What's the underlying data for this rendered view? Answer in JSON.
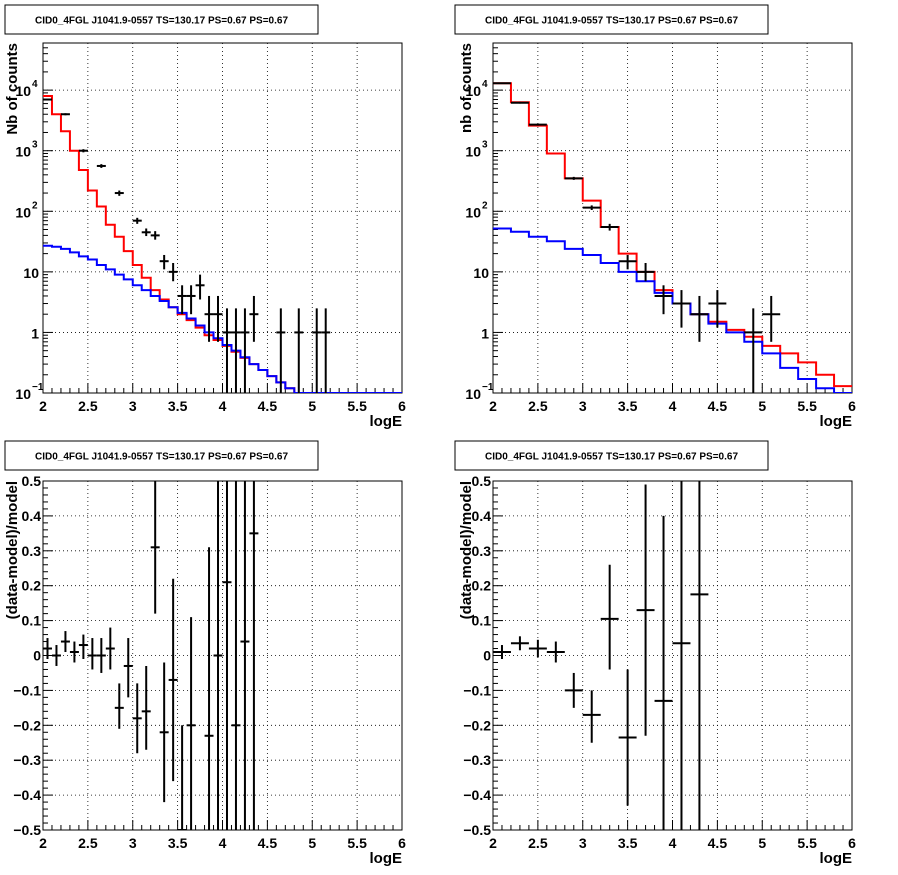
{
  "chart_data": [
    {
      "type": "step-histogram-with-data",
      "title": "CID0_4FGL J1041.9-0557 TS=130.17 PS=0.67 PS=0.67",
      "xlabel": "logE",
      "ylabel": "Nb of counts",
      "xlim": [
        2,
        6
      ],
      "ylim": [
        0.1,
        60000
      ],
      "yscale": "log",
      "grid": true,
      "xticks": [
        "2",
        "2.5",
        "3",
        "3.5",
        "4",
        "4.5",
        "5",
        "5.5",
        "6"
      ],
      "yticks": [
        {
          "v": 0.1,
          "label": "10",
          "exp": "−1"
        },
        {
          "v": 1,
          "label": "1",
          "exp": ""
        },
        {
          "v": 10,
          "label": "10",
          "exp": ""
        },
        {
          "v": 100,
          "label": "10",
          "exp": "2"
        },
        {
          "v": 1000,
          "label": "10",
          "exp": "3"
        },
        {
          "v": 10000,
          "label": "10",
          "exp": "4"
        }
      ],
      "bin_width": 0.1,
      "bin_start": 2.0,
      "series": [
        {
          "color": "#ff0000",
          "kind": "total-model",
          "values": [
            8000,
            4000,
            2100,
            1000,
            480,
            220,
            120,
            60,
            38,
            22,
            13,
            8,
            5,
            3.5,
            2.6,
            2.0,
            1.6,
            1.2,
            0.9,
            0.75,
            0.6,
            0.48,
            0.38,
            0.3,
            0.24,
            0.19,
            0.15,
            0.12,
            0.1,
            0.1,
            0.1,
            0.1,
            0.1,
            0.1,
            0.1,
            0.1,
            0.1,
            0.1,
            0.1,
            0.1
          ]
        },
        {
          "color": "#0000ff",
          "kind": "component-model",
          "values": [
            27,
            26,
            24,
            21,
            18,
            16,
            13,
            11,
            9,
            7.5,
            6,
            5,
            4,
            3.3,
            2.6,
            2.1,
            1.7,
            1.3,
            1.0,
            0.8,
            0.62,
            0.5,
            0.39,
            0.3,
            0.24,
            0.19,
            0.15,
            0.12,
            0.1,
            0.1,
            0.1,
            0.1,
            0.1,
            0.1,
            0.1,
            0.1,
            0.1,
            0.1,
            0.1,
            0.1
          ]
        }
      ],
      "data_points": [
        {
          "x": 2.05,
          "y": 7000,
          "lo": 6800,
          "hi": 7200
        },
        {
          "x": 2.25,
          "y": 4000,
          "lo": 3850,
          "hi": 4150
        },
        {
          "x": 2.45,
          "y": 1000,
          "lo": 940,
          "hi": 1060
        },
        {
          "x": 2.65,
          "y": 560,
          "lo": 520,
          "hi": 600
        },
        {
          "x": 2.85,
          "y": 200,
          "lo": 180,
          "hi": 220
        },
        {
          "x": 3.05,
          "y": 70,
          "lo": 62,
          "hi": 78
        },
        {
          "x": 3.15,
          "y": 45,
          "lo": 39,
          "hi": 52
        },
        {
          "x": 3.25,
          "y": 40,
          "lo": 34,
          "hi": 47
        },
        {
          "x": 3.35,
          "y": 15,
          "lo": 11,
          "hi": 19
        },
        {
          "x": 3.45,
          "y": 10,
          "lo": 7,
          "hi": 14
        },
        {
          "x": 3.55,
          "y": 4,
          "lo": 2,
          "hi": 6
        },
        {
          "x": 3.65,
          "y": 4,
          "lo": 2,
          "hi": 6
        },
        {
          "x": 3.75,
          "y": 6,
          "lo": 3.5,
          "hi": 9
        },
        {
          "x": 3.85,
          "y": 2,
          "lo": 0.7,
          "hi": 4
        },
        {
          "x": 3.95,
          "y": 2,
          "lo": 0.7,
          "hi": 4
        },
        {
          "x": 4.05,
          "y": 1,
          "lo": 0.1,
          "hi": 2.5
        },
        {
          "x": 4.15,
          "y": 1,
          "lo": 0.1,
          "hi": 2.5
        },
        {
          "x": 4.25,
          "y": 1,
          "lo": 0.1,
          "hi": 2.5
        },
        {
          "x": 4.35,
          "y": 2,
          "lo": 0.7,
          "hi": 4
        },
        {
          "x": 4.65,
          "y": 1,
          "lo": 0.1,
          "hi": 2.5
        },
        {
          "x": 4.85,
          "y": 1,
          "lo": 0.1,
          "hi": 2.5
        },
        {
          "x": 5.05,
          "y": 1,
          "lo": 0.1,
          "hi": 2.5
        },
        {
          "x": 5.15,
          "y": 1,
          "lo": 0.1,
          "hi": 2.5
        }
      ]
    },
    {
      "type": "step-histogram-with-data",
      "title": "CID0_4FGL J1041.9-0557 TS=130.17 PS=0.67 PS=0.67",
      "xlabel": "logE",
      "ylabel": "nb of counts",
      "xlim": [
        2,
        6
      ],
      "ylim": [
        0.1,
        60000
      ],
      "yscale": "log",
      "grid": true,
      "xticks": [
        "2",
        "2.5",
        "3",
        "3.5",
        "4",
        "4.5",
        "5",
        "5.5",
        "6"
      ],
      "yticks": [
        {
          "v": 0.1,
          "label": "10",
          "exp": "−1"
        },
        {
          "v": 1,
          "label": "1",
          "exp": ""
        },
        {
          "v": 10,
          "label": "10",
          "exp": ""
        },
        {
          "v": 100,
          "label": "10",
          "exp": "2"
        },
        {
          "v": 1000,
          "label": "10",
          "exp": "3"
        },
        {
          "v": 10000,
          "label": "10",
          "exp": "4"
        }
      ],
      "bin_width": 0.2,
      "bin_start": 2.0,
      "series": [
        {
          "color": "#ff0000",
          "kind": "total-model",
          "values": [
            13000,
            6300,
            2600,
            900,
            350,
            150,
            55,
            20,
            10,
            5,
            3,
            2,
            1.5,
            1.1,
            0.85,
            0.6,
            0.45,
            0.32,
            0.2,
            0.13
          ]
        },
        {
          "color": "#0000ff",
          "kind": "component-model",
          "values": [
            52,
            46,
            38,
            32,
            24,
            19,
            14,
            10,
            7,
            4.5,
            3,
            2,
            1.4,
            1.0,
            0.7,
            0.45,
            0.26,
            0.17,
            0.12,
            0.1
          ]
        }
      ],
      "data_points": [
        {
          "x": 2.1,
          "y": 13000,
          "lo": 12700,
          "hi": 13300
        },
        {
          "x": 2.3,
          "y": 6200,
          "lo": 6000,
          "hi": 6400
        },
        {
          "x": 2.5,
          "y": 2700,
          "lo": 2600,
          "hi": 2800
        },
        {
          "x": 2.9,
          "y": 350,
          "lo": 330,
          "hi": 370
        },
        {
          "x": 3.1,
          "y": 115,
          "lo": 105,
          "hi": 125
        },
        {
          "x": 3.3,
          "y": 55,
          "lo": 48,
          "hi": 62
        },
        {
          "x": 3.5,
          "y": 15,
          "lo": 11,
          "hi": 19
        },
        {
          "x": 3.7,
          "y": 10,
          "lo": 7,
          "hi": 14
        },
        {
          "x": 3.9,
          "y": 4,
          "lo": 2,
          "hi": 6
        },
        {
          "x": 4.1,
          "y": 3,
          "lo": 1.2,
          "hi": 5
        },
        {
          "x": 4.3,
          "y": 2,
          "lo": 0.7,
          "hi": 4
        },
        {
          "x": 4.5,
          "y": 3,
          "lo": 1.2,
          "hi": 5
        },
        {
          "x": 4.9,
          "y": 1,
          "lo": 0.1,
          "hi": 2.5
        },
        {
          "x": 5.1,
          "y": 2,
          "lo": 0.7,
          "hi": 4
        }
      ]
    },
    {
      "type": "residual-errorbars",
      "title": "CID0_4FGL J1041.9-0557 TS=130.17 PS=0.67 PS=0.67",
      "xlabel": "logE",
      "ylabel": "(data-model)/model",
      "xlim": [
        2,
        6
      ],
      "ylim": [
        -0.5,
        0.5
      ],
      "grid": true,
      "xticks": [
        "2",
        "2.5",
        "3",
        "3.5",
        "4",
        "4.5",
        "5",
        "5.5",
        "6"
      ],
      "yticks": [
        "−0.5",
        "−0.4",
        "−0.3",
        "−0.2",
        "−0.1",
        "0",
        "0.1",
        "0.2",
        "0.3",
        "0.4",
        "0.5"
      ],
      "bin_width": 0.1,
      "points": [
        {
          "x": 2.05,
          "y": 0.02,
          "lo": -0.01,
          "hi": 0.05
        },
        {
          "x": 2.15,
          "y": 0.0,
          "lo": -0.03,
          "hi": 0.03
        },
        {
          "x": 2.25,
          "y": 0.04,
          "lo": 0.01,
          "hi": 0.07
        },
        {
          "x": 2.35,
          "y": 0.01,
          "lo": -0.02,
          "hi": 0.04
        },
        {
          "x": 2.45,
          "y": 0.03,
          "lo": -0.01,
          "hi": 0.06
        },
        {
          "x": 2.55,
          "y": 0.0,
          "lo": -0.04,
          "hi": 0.05
        },
        {
          "x": 2.65,
          "y": 0.0,
          "lo": -0.05,
          "hi": 0.05
        },
        {
          "x": 2.75,
          "y": 0.02,
          "lo": -0.04,
          "hi": 0.08
        },
        {
          "x": 2.85,
          "y": -0.15,
          "lo": -0.21,
          "hi": -0.08
        },
        {
          "x": 2.95,
          "y": -0.03,
          "lo": -0.12,
          "hi": 0.05
        },
        {
          "x": 3.05,
          "y": -0.18,
          "lo": -0.28,
          "hi": -0.08
        },
        {
          "x": 3.15,
          "y": -0.16,
          "lo": -0.27,
          "hi": -0.03
        },
        {
          "x": 3.25,
          "y": 0.31,
          "lo": 0.12,
          "hi": 0.5
        },
        {
          "x": 3.35,
          "y": -0.22,
          "lo": -0.42,
          "hi": -0.02
        },
        {
          "x": 3.45,
          "y": -0.07,
          "lo": -0.36,
          "hi": 0.22
        },
        {
          "x": 3.55,
          "y": -0.5,
          "lo": -0.5,
          "hi": -0.2
        },
        {
          "x": 3.65,
          "y": -0.2,
          "lo": -0.5,
          "hi": 0.11
        },
        {
          "x": 3.85,
          "y": -0.23,
          "lo": -0.5,
          "hi": 0.31
        },
        {
          "x": 3.95,
          "y": 0.0,
          "lo": -0.5,
          "hi": 0.5
        },
        {
          "x": 4.05,
          "y": 0.21,
          "lo": -0.5,
          "hi": 0.5
        },
        {
          "x": 4.15,
          "y": -0.2,
          "lo": -0.5,
          "hi": 0.5
        },
        {
          "x": 4.25,
          "y": 0.04,
          "lo": -0.5,
          "hi": 0.5
        },
        {
          "x": 4.35,
          "y": 0.35,
          "lo": -0.5,
          "hi": 0.5
        }
      ]
    },
    {
      "type": "residual-errorbars",
      "title": "CID0_4FGL J1041.9-0557 TS=130.17 PS=0.67 PS=0.67",
      "xlabel": "logE",
      "ylabel": "(data-model)/model",
      "xlim": [
        2,
        6
      ],
      "ylim": [
        -0.5,
        0.5
      ],
      "grid": true,
      "xticks": [
        "2",
        "2.5",
        "3",
        "3.5",
        "4",
        "4.5",
        "5",
        "5.5",
        "6"
      ],
      "yticks": [
        "−0.5",
        "−0.4",
        "−0.3",
        "−0.2",
        "−0.1",
        "0",
        "0.1",
        "0.2",
        "0.3",
        "0.4",
        "0.5"
      ],
      "bin_width": 0.2,
      "points": [
        {
          "x": 2.1,
          "y": 0.01,
          "lo": -0.01,
          "hi": 0.03
        },
        {
          "x": 2.3,
          "y": 0.035,
          "lo": 0.015,
          "hi": 0.055
        },
        {
          "x": 2.5,
          "y": 0.02,
          "lo": -0.005,
          "hi": 0.045
        },
        {
          "x": 2.7,
          "y": 0.01,
          "lo": -0.02,
          "hi": 0.04
        },
        {
          "x": 2.9,
          "y": -0.1,
          "lo": -0.15,
          "hi": -0.05
        },
        {
          "x": 3.1,
          "y": -0.17,
          "lo": -0.25,
          "hi": -0.1
        },
        {
          "x": 3.3,
          "y": 0.105,
          "lo": -0.04,
          "hi": 0.26
        },
        {
          "x": 3.5,
          "y": -0.235,
          "lo": -0.43,
          "hi": -0.04
        },
        {
          "x": 3.7,
          "y": 0.13,
          "lo": -0.23,
          "hi": 0.49
        },
        {
          "x": 3.9,
          "y": -0.13,
          "lo": -0.5,
          "hi": 0.4
        },
        {
          "x": 4.1,
          "y": 0.035,
          "lo": -0.5,
          "hi": 0.5
        },
        {
          "x": 4.3,
          "y": 0.175,
          "lo": -0.5,
          "hi": 0.5
        }
      ]
    }
  ]
}
